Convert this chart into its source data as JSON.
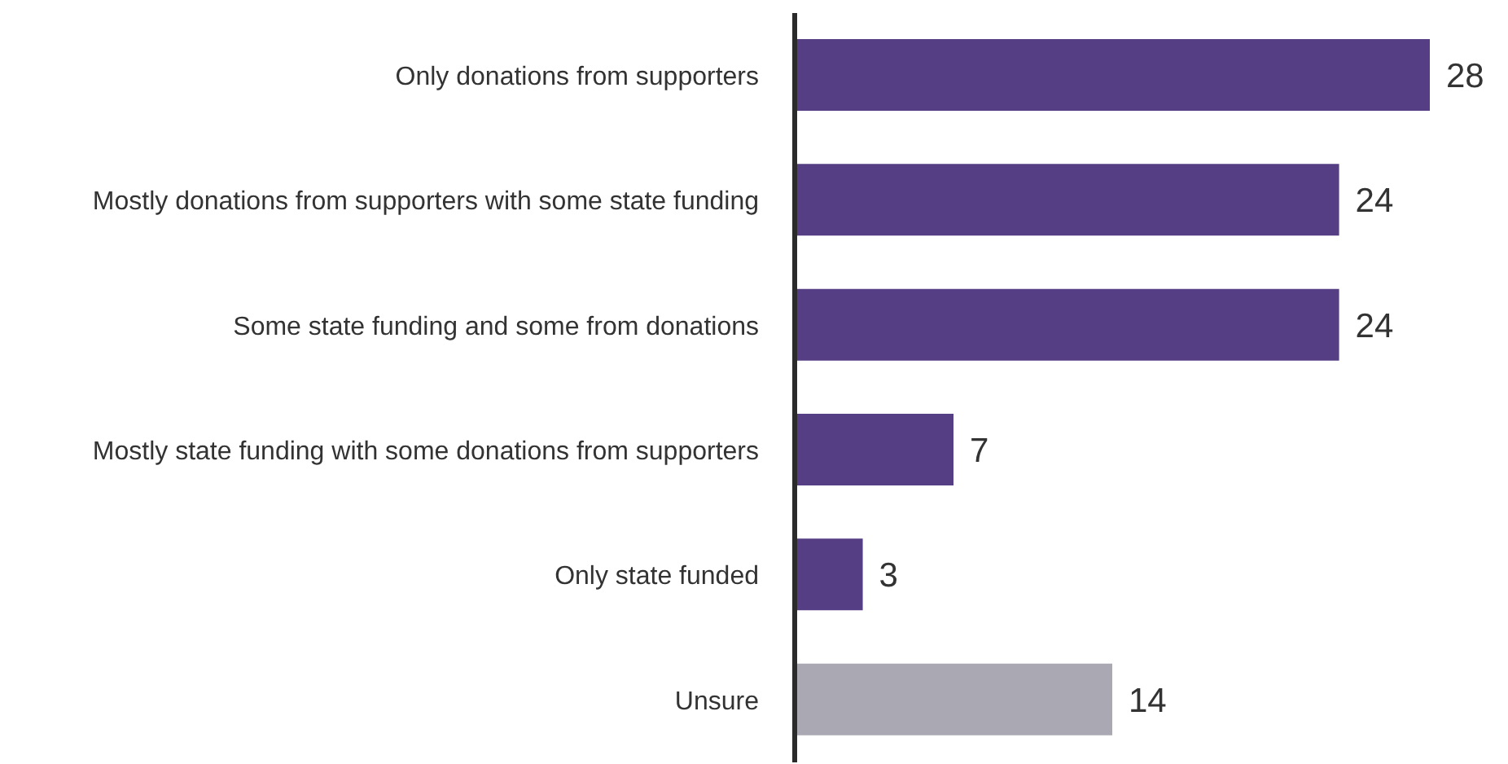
{
  "chart_data": {
    "type": "bar",
    "orientation": "horizontal",
    "categories": [
      "Only donations from supporters",
      "Mostly donations from supporters with some state funding",
      "Some state funding and some from donations",
      "Mostly state funding with some donations from supporters",
      "Only state funded",
      "Unsure"
    ],
    "values": [
      28,
      24,
      24,
      7,
      3,
      14
    ],
    "colors": [
      "#563e84",
      "#563e84",
      "#563e84",
      "#563e84",
      "#563e84",
      "#a9a8b3"
    ],
    "data_labels": true
  }
}
